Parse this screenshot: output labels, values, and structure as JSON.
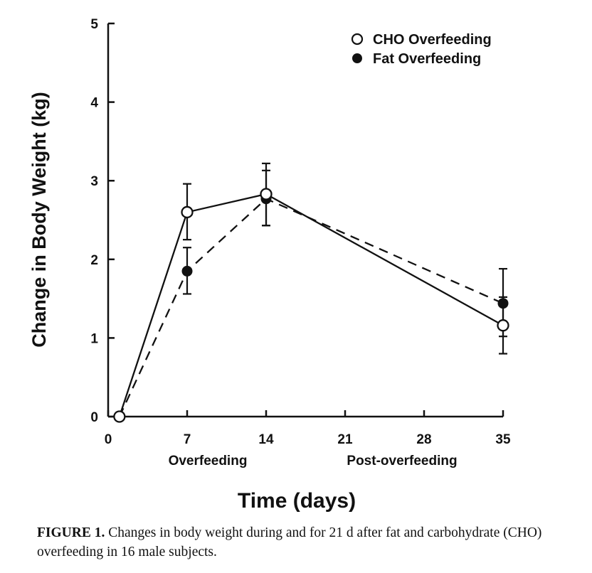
{
  "chart_data": {
    "type": "line",
    "x_label": "Time (days)",
    "y_label": "Change in Body Weight (kg)",
    "x_ticks": [
      "0",
      "7",
      "14",
      "21",
      "28",
      "35"
    ],
    "y_ticks": [
      "0",
      "1",
      "2",
      "3",
      "4",
      "5"
    ],
    "xlim": [
      0,
      35
    ],
    "ylim": [
      0,
      5
    ],
    "phase_labels": [
      "Overfeeding",
      "Post-overfeeding"
    ],
    "legend_position": "top-right",
    "series": [
      {
        "name": "CHO Overfeeding",
        "marker": "open-circle",
        "line": "solid",
        "x": [
          1,
          7,
          14,
          35
        ],
        "y": [
          0,
          2.6,
          2.83,
          1.16
        ],
        "err_low": [
          0,
          2.25,
          2.43,
          0.8
        ],
        "err_high": [
          0,
          2.96,
          3.22,
          1.52
        ]
      },
      {
        "name": "Fat Overfeeding",
        "marker": "filled-circle",
        "line": "dashed",
        "x": [
          1,
          7,
          14,
          35
        ],
        "y": [
          0,
          1.85,
          2.77,
          1.44
        ],
        "err_low": [
          0,
          1.56,
          2.43,
          1.02
        ],
        "err_high": [
          0,
          2.15,
          3.13,
          1.88
        ]
      }
    ]
  },
  "caption": {
    "label": "FIGURE 1.",
    "text": " Changes in body weight during and for 21 d after fat and carbohydrate (CHO) overfeeding in 16 male subjects."
  }
}
